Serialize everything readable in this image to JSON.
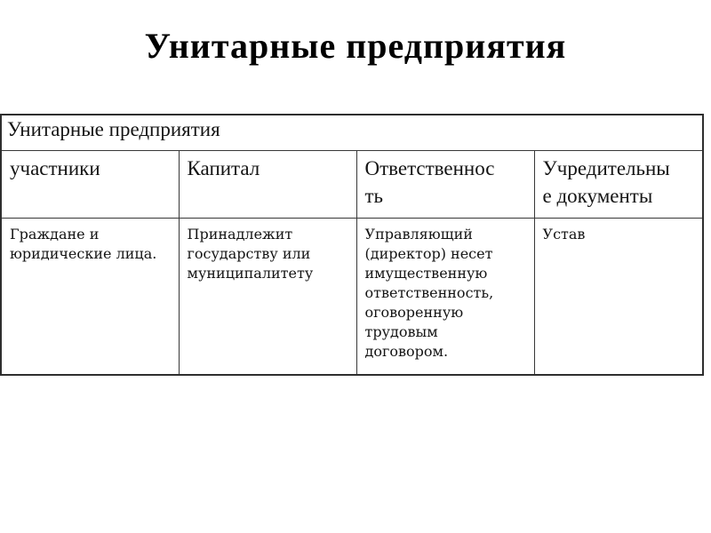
{
  "page": {
    "title": "Унитарные предприятия",
    "background_color": "#ffffff",
    "text_color": "#000000",
    "border_color": "#333333"
  },
  "table": {
    "title": "Унитарные предприятия",
    "col_headers": [
      "участники",
      "Капитал",
      "Ответственнос\nть",
      "Учредительны\nе документы"
    ],
    "rows": [
      [
        "Граждане и\nюридические лица.",
        "Принадлежит\nгосударству или\nмуниципалитету",
        "Управляющий\n(директор) несет\nимущественную\nответственность,\nоговоренную\nтрудовым\nдоговором.",
        "Устав"
      ]
    ]
  }
}
